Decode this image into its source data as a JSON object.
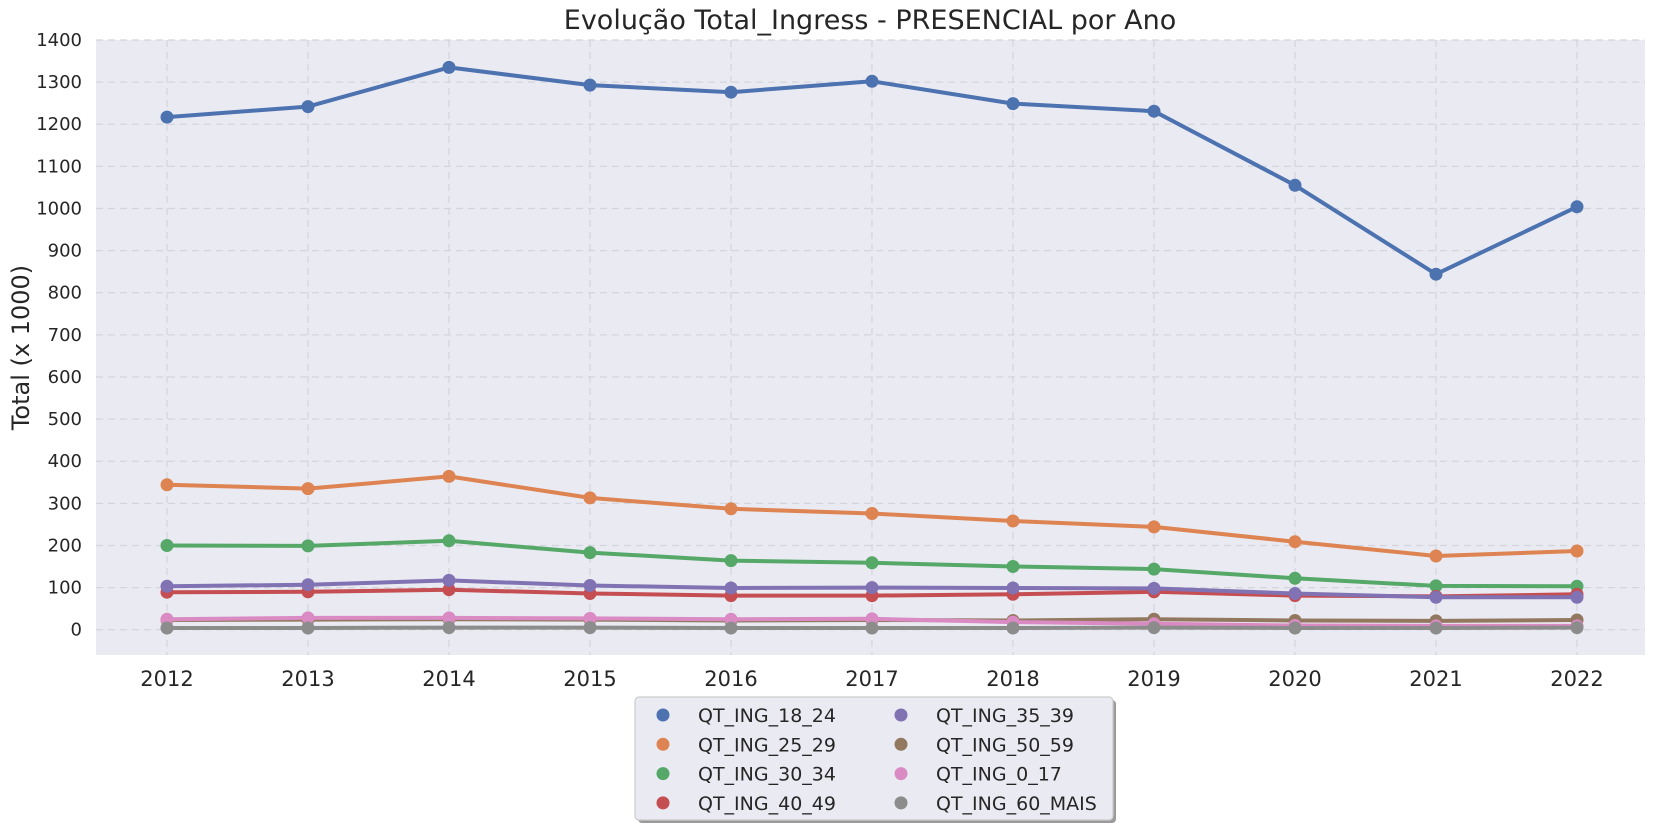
{
  "chart_data": {
    "type": "line",
    "title": "Evolução Total_Ingress - PRESENCIAL por Ano",
    "xlabel": "",
    "ylabel": "Total (x 1000)",
    "categories": [
      "2012",
      "2013",
      "2014",
      "2015",
      "2016",
      "2017",
      "2018",
      "2019",
      "2020",
      "2021",
      "2022"
    ],
    "yticks": [
      0,
      100,
      200,
      300,
      400,
      500,
      600,
      700,
      800,
      900,
      1000,
      1100,
      1200,
      1300,
      1400
    ],
    "ylim": [
      -60,
      1400
    ],
    "grid": true,
    "legend_position": "bottom-center",
    "series": [
      {
        "name": "QT_ING_18_24",
        "color": "#4c72b0",
        "values": [
          1217,
          1242,
          1335,
          1293,
          1276,
          1302,
          1249,
          1231,
          1055,
          844,
          1004
        ]
      },
      {
        "name": "QT_ING_25_29",
        "color": "#dd8452",
        "values": [
          344,
          335,
          364,
          313,
          287,
          276,
          258,
          244,
          209,
          175,
          187
        ]
      },
      {
        "name": "QT_ING_30_34",
        "color": "#55a868",
        "values": [
          200,
          199,
          211,
          183,
          164,
          159,
          150,
          144,
          122,
          104,
          103
        ]
      },
      {
        "name": "QT_ING_40_49",
        "color": "#c44e52",
        "values": [
          89,
          90,
          95,
          86,
          81,
          81,
          84,
          90,
          81,
          79,
          84
        ]
      },
      {
        "name": "QT_ING_35_39",
        "color": "#8172b3",
        "values": [
          103,
          107,
          117,
          105,
          99,
          100,
          99,
          98,
          86,
          77,
          77
        ]
      },
      {
        "name": "QT_ING_50_59",
        "color": "#937860",
        "values": [
          23,
          24,
          25,
          24,
          22,
          23,
          22,
          25,
          22,
          21,
          23
        ]
      },
      {
        "name": "QT_ING_0_17",
        "color": "#da8bc3",
        "values": [
          25,
          28,
          28,
          27,
          25,
          26,
          18,
          14,
          10,
          9,
          9
        ]
      },
      {
        "name": "QT_ING_60_MAIS",
        "color": "#8c8c8c",
        "values": [
          4,
          4,
          5,
          5,
          4,
          4,
          4,
          5,
          4,
          4,
          5
        ]
      }
    ],
    "legend_order": [
      "QT_ING_18_24",
      "QT_ING_25_29",
      "QT_ING_30_34",
      "QT_ING_40_49",
      "QT_ING_35_39",
      "QT_ING_50_59",
      "QT_ING_0_17",
      "QT_ING_60_MAIS"
    ]
  }
}
